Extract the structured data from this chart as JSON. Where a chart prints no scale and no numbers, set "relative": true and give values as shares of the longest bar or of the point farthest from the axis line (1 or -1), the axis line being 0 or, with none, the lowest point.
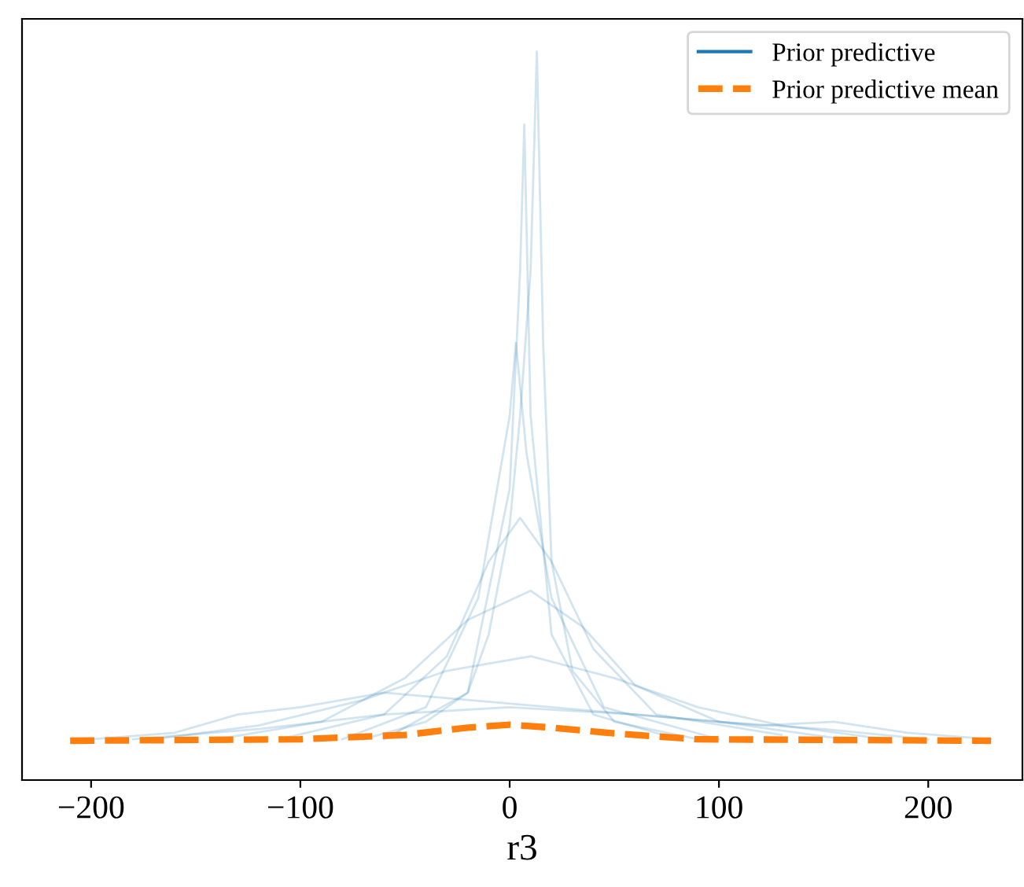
{
  "chart_data": {
    "type": "line",
    "xlabel": "r3",
    "relative": true,
    "xlim": [
      -233,
      245
    ],
    "xticks": [
      {
        "value": -200,
        "label": "−200"
      },
      {
        "value": -100,
        "label": "−100"
      },
      0,
      100,
      200
    ],
    "legend": "top right",
    "grid": false,
    "series": [
      {
        "name": "Prior predictive",
        "color": "#1f77b4",
        "line_style": "solid",
        "x": [
          -70,
          -40,
          -20,
          -10,
          0,
          5,
          10,
          13,
          16,
          20,
          30,
          50,
          90
        ],
        "values": [
          0.056,
          0.08,
          0.12,
          0.2,
          0.35,
          0.5,
          0.7,
          1.0,
          0.6,
          0.3,
          0.15,
          0.08,
          0.056
        ]
      },
      {
        "color": "#1f77b4",
        "line_style": "solid",
        "x": [
          -60,
          -20,
          0,
          5,
          7,
          10,
          20,
          40,
          80
        ],
        "values": [
          0.056,
          0.12,
          0.4,
          0.7,
          0.9,
          0.5,
          0.2,
          0.09,
          0.056
        ]
      },
      {
        "color": "#1f77b4",
        "line_style": "solid",
        "x": [
          -80,
          -40,
          -15,
          0,
          3,
          8,
          20,
          45,
          100
        ],
        "values": [
          0.056,
          0.1,
          0.25,
          0.5,
          0.6,
          0.45,
          0.25,
          0.1,
          0.056
        ]
      },
      {
        "color": "#1f77b4",
        "line_style": "solid",
        "x": [
          -110,
          -60,
          -30,
          -10,
          5,
          20,
          40,
          70,
          130
        ],
        "values": [
          0.056,
          0.09,
          0.17,
          0.3,
          0.36,
          0.3,
          0.18,
          0.09,
          0.062
        ]
      },
      {
        "color": "#1f77b4",
        "line_style": "solid",
        "x": [
          -140,
          -90,
          -50,
          -20,
          10,
          35,
          60,
          100,
          160
        ],
        "values": [
          0.056,
          0.08,
          0.14,
          0.22,
          0.26,
          0.21,
          0.13,
          0.08,
          0.056
        ]
      },
      {
        "color": "#1f77b4",
        "line_style": "solid",
        "x": [
          -170,
          -120,
          -70,
          -30,
          10,
          50,
          90,
          130,
          180
        ],
        "values": [
          0.056,
          0.075,
          0.11,
          0.15,
          0.17,
          0.14,
          0.1,
          0.075,
          0.056
        ]
      },
      {
        "color": "#1f77b4",
        "line_style": "solid",
        "x": [
          -200,
          -160,
          -130,
          -100,
          -60,
          -20,
          20,
          60,
          100,
          150,
          200
        ],
        "values": [
          0.056,
          0.065,
          0.09,
          0.1,
          0.12,
          0.11,
          0.1,
          0.09,
          0.08,
          0.07,
          0.056
        ]
      },
      {
        "color": "#1f77b4",
        "line_style": "solid",
        "x": [
          -180,
          -120,
          -60,
          0,
          60,
          120,
          155,
          190,
          230
        ],
        "values": [
          0.056,
          0.07,
          0.09,
          0.1,
          0.09,
          0.075,
          0.08,
          0.065,
          0.056
        ]
      },
      {
        "name": "Prior predictive mean",
        "color": "#ff7f0e",
        "line_style": "dashed",
        "x": [
          -210,
          -100,
          -50,
          -20,
          0,
          20,
          50,
          90,
          230
        ],
        "values": [
          0.054,
          0.056,
          0.062,
          0.072,
          0.076,
          0.072,
          0.064,
          0.056,
          0.054
        ]
      }
    ]
  }
}
